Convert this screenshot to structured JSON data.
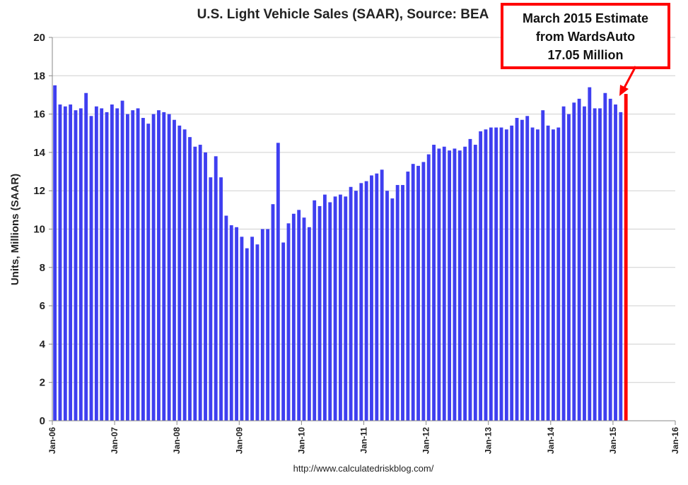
{
  "chart_data": {
    "type": "bar",
    "title": "U.S. Light Vehicle Sales (SAAR), Source: BEA",
    "ylabel": "Units, Millions (SAAR)",
    "xlabel": "",
    "ylim": [
      0,
      20
    ],
    "yticks": [
      "0",
      "2",
      "4",
      "6",
      "8",
      "10",
      "12",
      "14",
      "16",
      "18",
      "20"
    ],
    "xticks": [
      "Jan-06",
      "Jan-07",
      "Jan-08",
      "Jan-09",
      "Jan-10",
      "Jan-11",
      "Jan-12",
      "Jan-13",
      "Jan-14",
      "Jan-15",
      "Jan-16"
    ],
    "x_start": "Jan-06",
    "x_end": "Jan-16",
    "grid": true,
    "bar_color": "#3f3ff0",
    "highlight_color": "#ff0000",
    "values": [
      17.5,
      16.5,
      16.4,
      16.5,
      16.2,
      16.3,
      17.1,
      15.9,
      16.4,
      16.3,
      16.1,
      16.5,
      16.3,
      16.7,
      16.0,
      16.2,
      16.3,
      15.8,
      15.5,
      16.0,
      16.2,
      16.1,
      16.0,
      15.7,
      15.4,
      15.2,
      14.8,
      14.3,
      14.4,
      14.0,
      12.7,
      13.8,
      12.7,
      10.7,
      10.2,
      10.1,
      9.6,
      9.0,
      9.6,
      9.2,
      10.0,
      10.0,
      11.3,
      14.5,
      9.3,
      10.3,
      10.8,
      11.0,
      10.6,
      10.1,
      11.5,
      11.2,
      11.8,
      11.4,
      11.7,
      11.8,
      11.7,
      12.2,
      12.0,
      12.4,
      12.5,
      12.8,
      12.9,
      13.1,
      12.0,
      11.6,
      12.3,
      12.3,
      13.0,
      13.4,
      13.3,
      13.5,
      13.9,
      14.4,
      14.2,
      14.3,
      14.1,
      14.2,
      14.1,
      14.3,
      14.7,
      14.4,
      15.1,
      15.2,
      15.3,
      15.3,
      15.3,
      15.2,
      15.4,
      15.8,
      15.7,
      15.9,
      15.3,
      15.2,
      16.2,
      15.4,
      15.2,
      15.3,
      16.4,
      16.0,
      16.6,
      16.8,
      16.4,
      17.4,
      16.3,
      16.3,
      17.1,
      16.8,
      16.5,
      16.1
    ],
    "highlight": {
      "label": "March 2015",
      "value": 17.05,
      "callout": [
        "March 2015 Estimate",
        "from WardsAuto",
        "17.05 Million"
      ]
    }
  },
  "source": "http://www.calculatedriskblog.com/"
}
